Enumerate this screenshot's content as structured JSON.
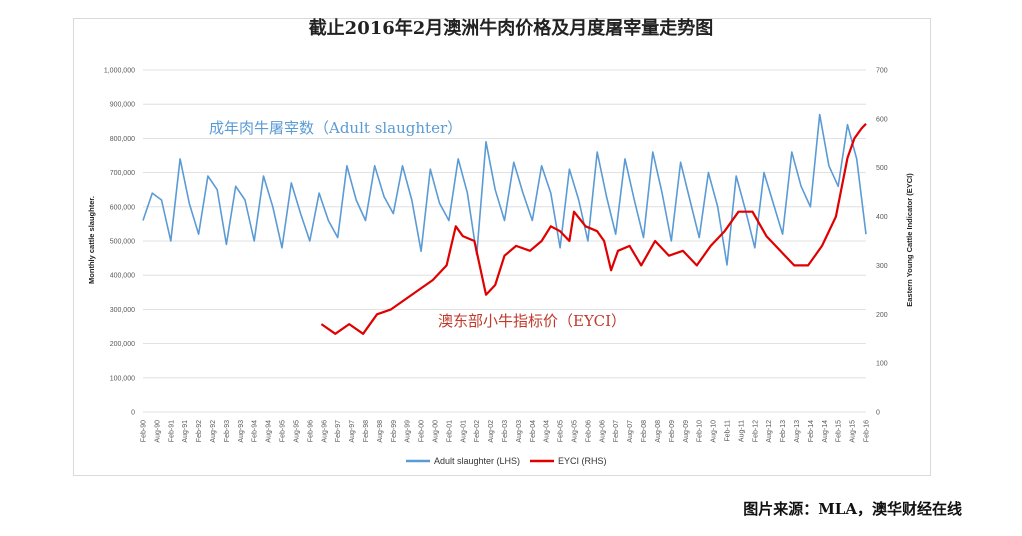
{
  "chart_data": {
    "type": "line",
    "title": "截止2016年2月澳洲牛肉价格及月度屠宰量走势图",
    "source": "图片来源：MLA，澳华财经在线",
    "ylabel_left": "Monthly cattle slaughter.",
    "ylabel_right": "Eastern Young Cattle Indicator (EYCI)",
    "ylim_left": [
      0,
      1000000
    ],
    "ylim_right": [
      0,
      700
    ],
    "yticks_left": [
      "0",
      "100,000",
      "200,000",
      "300,000",
      "400,000",
      "500,000",
      "600,000",
      "700,000",
      "800,000",
      "900,000",
      "1,000,000"
    ],
    "yticks_right": [
      "0",
      "100",
      "200",
      "300",
      "400",
      "500",
      "600",
      "700"
    ],
    "x_start": "Feb-90",
    "x_end": "Feb-16",
    "xticks": [
      "Feb-90",
      "Aug-90",
      "Feb-91",
      "Aug-91",
      "Feb-92",
      "Aug-92",
      "Feb-93",
      "Aug-93",
      "Feb-94",
      "Aug-94",
      "Feb-95",
      "Aug-95",
      "Feb-96",
      "Aug-96",
      "Feb-97",
      "Aug-97",
      "Feb-98",
      "Aug-98",
      "Feb-99",
      "Aug-99",
      "Feb-00",
      "Aug-00",
      "Feb-01",
      "Aug-01",
      "Feb-02",
      "Aug-02",
      "Feb-03",
      "Aug-03",
      "Feb-04",
      "Aug-04",
      "Feb-05",
      "Aug-05",
      "Feb-06",
      "Aug-06",
      "Feb-07",
      "Aug-07",
      "Feb-08",
      "Aug-08",
      "Feb-09",
      "Aug-09",
      "Feb-10",
      "Aug-10",
      "Feb-11",
      "Aug-11",
      "Feb-12",
      "Aug-12",
      "Feb-13",
      "Aug-13",
      "Feb-14",
      "Aug-14",
      "Feb-15",
      "Aug-15",
      "Feb-16"
    ],
    "annotations": {
      "slaughter": "成年肉牛屠宰数（Adult slaughter）",
      "eyci": "澳东部小牛指标价（EYCI）"
    },
    "legend_position": "bottom",
    "grid": true,
    "series": [
      {
        "name": "Adult slaughter (LHS)",
        "axis": "left",
        "color": "#5b9bd5",
        "points": [
          [
            "Feb-90",
            560000
          ],
          [
            "Jun-90",
            640000
          ],
          [
            "Oct-90",
            620000
          ],
          [
            "Feb-91",
            500000
          ],
          [
            "Jun-91",
            740000
          ],
          [
            "Oct-91",
            610000
          ],
          [
            "Feb-92",
            520000
          ],
          [
            "Jun-92",
            690000
          ],
          [
            "Oct-92",
            650000
          ],
          [
            "Feb-93",
            490000
          ],
          [
            "Jun-93",
            660000
          ],
          [
            "Oct-93",
            620000
          ],
          [
            "Feb-94",
            500000
          ],
          [
            "Jun-94",
            690000
          ],
          [
            "Oct-94",
            600000
          ],
          [
            "Feb-95",
            480000
          ],
          [
            "Jun-95",
            670000
          ],
          [
            "Oct-95",
            580000
          ],
          [
            "Feb-96",
            500000
          ],
          [
            "Jun-96",
            640000
          ],
          [
            "Oct-96",
            560000
          ],
          [
            "Feb-97",
            510000
          ],
          [
            "Jun-97",
            720000
          ],
          [
            "Oct-97",
            620000
          ],
          [
            "Feb-98",
            560000
          ],
          [
            "Jun-98",
            720000
          ],
          [
            "Oct-98",
            630000
          ],
          [
            "Feb-99",
            580000
          ],
          [
            "Jun-99",
            720000
          ],
          [
            "Oct-99",
            620000
          ],
          [
            "Feb-00",
            470000
          ],
          [
            "Jun-00",
            710000
          ],
          [
            "Oct-00",
            610000
          ],
          [
            "Feb-01",
            560000
          ],
          [
            "Jun-01",
            740000
          ],
          [
            "Oct-01",
            640000
          ],
          [
            "Feb-02",
            460000
          ],
          [
            "Jun-02",
            790000
          ],
          [
            "Oct-02",
            650000
          ],
          [
            "Feb-03",
            560000
          ],
          [
            "Jun-03",
            730000
          ],
          [
            "Oct-03",
            640000
          ],
          [
            "Feb-04",
            560000
          ],
          [
            "Jun-04",
            720000
          ],
          [
            "Oct-04",
            640000
          ],
          [
            "Feb-05",
            480000
          ],
          [
            "Jun-05",
            710000
          ],
          [
            "Oct-05",
            620000
          ],
          [
            "Feb-06",
            500000
          ],
          [
            "Jun-06",
            760000
          ],
          [
            "Oct-06",
            630000
          ],
          [
            "Feb-07",
            520000
          ],
          [
            "Jun-07",
            740000
          ],
          [
            "Oct-07",
            620000
          ],
          [
            "Feb-08",
            510000
          ],
          [
            "Jun-08",
            760000
          ],
          [
            "Oct-08",
            640000
          ],
          [
            "Feb-09",
            500000
          ],
          [
            "Jun-09",
            730000
          ],
          [
            "Oct-09",
            620000
          ],
          [
            "Feb-10",
            510000
          ],
          [
            "Jun-10",
            700000
          ],
          [
            "Oct-10",
            600000
          ],
          [
            "Feb-11",
            430000
          ],
          [
            "Jun-11",
            690000
          ],
          [
            "Oct-11",
            590000
          ],
          [
            "Feb-12",
            480000
          ],
          [
            "Jun-12",
            700000
          ],
          [
            "Oct-12",
            610000
          ],
          [
            "Feb-13",
            520000
          ],
          [
            "Jun-13",
            760000
          ],
          [
            "Oct-13",
            660000
          ],
          [
            "Feb-14",
            600000
          ],
          [
            "Jun-14",
            870000
          ],
          [
            "Oct-14",
            720000
          ],
          [
            "Feb-15",
            660000
          ],
          [
            "Jun-15",
            840000
          ],
          [
            "Oct-15",
            740000
          ],
          [
            "Feb-16",
            520000
          ]
        ]
      },
      {
        "name": "EYCI (RHS)",
        "axis": "right",
        "color": "#e00000",
        "points": [
          [
            "Jul-96",
            180
          ],
          [
            "Jan-97",
            160
          ],
          [
            "Jul-97",
            180
          ],
          [
            "Jan-98",
            160
          ],
          [
            "Jul-98",
            200
          ],
          [
            "Jan-99",
            210
          ],
          [
            "Jul-99",
            230
          ],
          [
            "Jan-00",
            250
          ],
          [
            "Jul-00",
            270
          ],
          [
            "Jan-01",
            300
          ],
          [
            "May-01",
            380
          ],
          [
            "Aug-01",
            360
          ],
          [
            "Jan-02",
            350
          ],
          [
            "Jun-02",
            240
          ],
          [
            "Oct-02",
            260
          ],
          [
            "Feb-03",
            320
          ],
          [
            "Jul-03",
            340
          ],
          [
            "Jan-04",
            330
          ],
          [
            "Jun-04",
            350
          ],
          [
            "Oct-04",
            380
          ],
          [
            "Feb-05",
            370
          ],
          [
            "Jun-05",
            350
          ],
          [
            "Aug-05",
            410
          ],
          [
            "Jan-06",
            380
          ],
          [
            "Jun-06",
            370
          ],
          [
            "Sep-06",
            350
          ],
          [
            "Dec-06",
            290
          ],
          [
            "Mar-07",
            330
          ],
          [
            "Aug-07",
            340
          ],
          [
            "Jan-08",
            300
          ],
          [
            "Jul-08",
            350
          ],
          [
            "Jan-09",
            320
          ],
          [
            "Jul-09",
            330
          ],
          [
            "Jan-10",
            300
          ],
          [
            "Jul-10",
            340
          ],
          [
            "Jan-11",
            370
          ],
          [
            "Jul-11",
            410
          ],
          [
            "Jan-12",
            410
          ],
          [
            "Jul-12",
            360
          ],
          [
            "Jan-13",
            330
          ],
          [
            "Jul-13",
            300
          ],
          [
            "Jan-14",
            300
          ],
          [
            "Jul-14",
            340
          ],
          [
            "Jan-15",
            400
          ],
          [
            "Jun-15",
            520
          ],
          [
            "Sep-15",
            560
          ],
          [
            "Dec-15",
            580
          ],
          [
            "Feb-16",
            590
          ]
        ]
      }
    ]
  }
}
